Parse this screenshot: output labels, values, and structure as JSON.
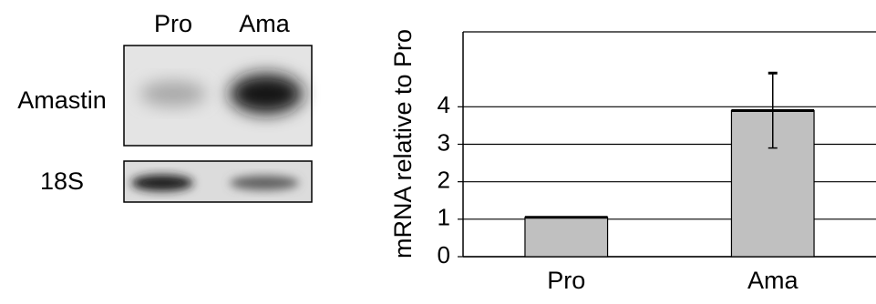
{
  "blot": {
    "lanes": [
      "Pro",
      "Ama"
    ],
    "rows": [
      "Amastin",
      "18S"
    ]
  },
  "chart_data": {
    "type": "bar",
    "y_label": "mRNA relative to Pro",
    "categories": [
      "Pro",
      "Ama"
    ],
    "values": [
      1.05,
      3.9
    ],
    "errors": [
      null,
      1.0
    ],
    "color": "#c0c0c0",
    "ylim": [
      0,
      6
    ],
    "yticks": [
      0,
      1,
      2,
      3,
      4
    ],
    "grid": true
  }
}
